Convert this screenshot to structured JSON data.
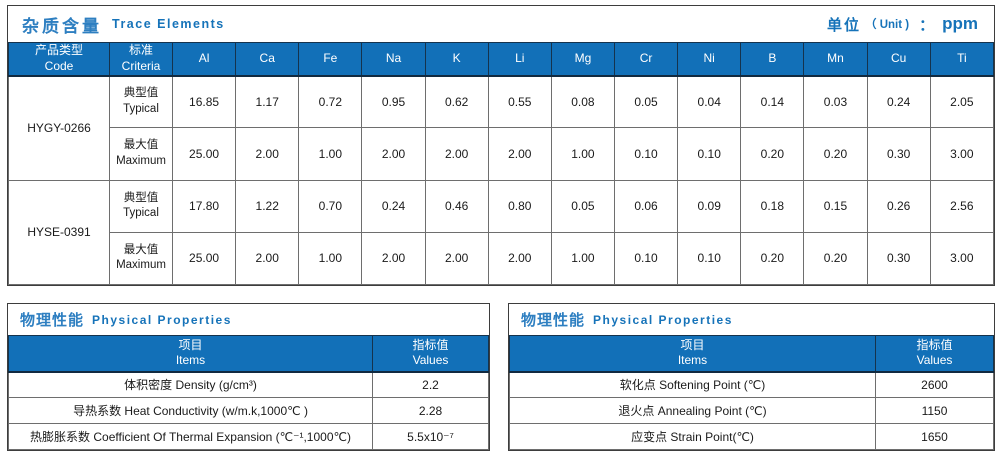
{
  "colors": {
    "header_blue": "#1270b8",
    "title_blue": "#2e7fc1",
    "subtitle_blue": "#1673b9",
    "panel_border": "#3d3d3d",
    "cell_border": "#6e6e6e"
  },
  "trace_elements": {
    "title_cn": "杂质含量",
    "title_en": "Trace Elements",
    "unit": {
      "label_cn": "单位",
      "paren": "（ Unit )",
      "colon": "：",
      "value": "ppm"
    },
    "headers": {
      "code_cn": "产品类型",
      "code_en": "Code",
      "criteria_cn": "标准",
      "criteria_en": "Criteria"
    },
    "elements": [
      "Al",
      "Ca",
      "Fe",
      "Na",
      "K",
      "Li",
      "Mg",
      "Cr",
      "Ni",
      "B",
      "Mn",
      "Cu",
      "Ti"
    ],
    "row_labels": {
      "typical_cn": "典型值",
      "typical_en": "Typical",
      "maximum_cn": "最大值",
      "maximum_en": "Maximum"
    },
    "products": [
      {
        "code": "HYGY-0266",
        "typical": [
          "16.85",
          "1.17",
          "0.72",
          "0.95",
          "0.62",
          "0.55",
          "0.08",
          "0.05",
          "0.04",
          "0.14",
          "0.03",
          "0.24",
          "2.05"
        ],
        "maximum": [
          "25.00",
          "2.00",
          "1.00",
          "2.00",
          "2.00",
          "2.00",
          "1.00",
          "0.10",
          "0.10",
          "0.20",
          "0.20",
          "0.30",
          "3.00"
        ]
      },
      {
        "code": "HYSE-0391",
        "typical": [
          "17.80",
          "1.22",
          "0.70",
          "0.24",
          "0.46",
          "0.80",
          "0.05",
          "0.06",
          "0.09",
          "0.18",
          "0.15",
          "0.26",
          "2.56"
        ],
        "maximum": [
          "25.00",
          "2.00",
          "1.00",
          "2.00",
          "2.00",
          "2.00",
          "1.00",
          "0.10",
          "0.10",
          "0.20",
          "0.20",
          "0.30",
          "3.00"
        ]
      }
    ]
  },
  "physical_left": {
    "title_cn": "物理性能",
    "title_en": "Physical Properties",
    "col_items_cn": "项目",
    "col_items_en": "Items",
    "col_values_cn": "指标值",
    "col_values_en": "Values",
    "rows": [
      {
        "item": "体积密度 Density (g/cm³)",
        "value": "2.2"
      },
      {
        "item": "导热系数 Heat Conductivity (w/m.k,1000℃ )",
        "value": "2.28"
      },
      {
        "item": "热膨胀系数 Coefficient Of Thermal Expansion (℃⁻¹,1000℃)",
        "value": "5.5x10⁻⁷"
      }
    ]
  },
  "physical_right": {
    "title_cn": "物理性能",
    "title_en": "Physical Properties",
    "col_items_cn": "项目",
    "col_items_en": "Items",
    "col_values_cn": "指标值",
    "col_values_en": "Values",
    "rows": [
      {
        "item": "软化点 Softening Point (℃)",
        "value": "2600"
      },
      {
        "item": "退火点 Annealing Point (℃)",
        "value": "1150"
      },
      {
        "item": "应变点 Strain Point(℃)",
        "value": "1650"
      }
    ]
  }
}
